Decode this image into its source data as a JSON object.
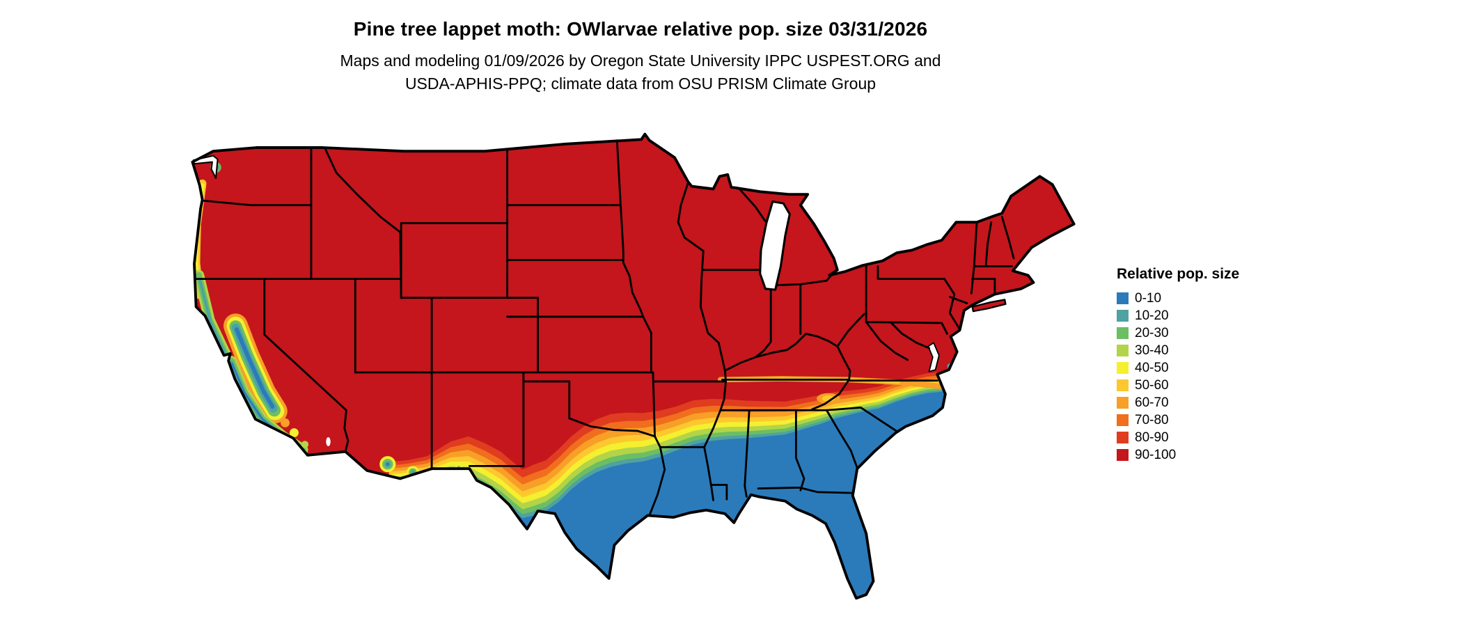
{
  "header": {
    "title": "Pine tree lappet moth: OWlarvae relative pop. size 03/31/2026",
    "subtitle_line1": "Maps and modeling 01/09/2026 by Oregon State University IPPC USPEST.ORG and",
    "subtitle_line2": "USDA-APHIS-PPQ; climate data from OSU PRISM Climate Group"
  },
  "legend": {
    "title": "Relative pop. size",
    "items": [
      {
        "label": "0-10",
        "color": "#2B7BBA"
      },
      {
        "label": "10-20",
        "color": "#4FA2A0"
      },
      {
        "label": "20-30",
        "color": "#6CBE63"
      },
      {
        "label": "30-40",
        "color": "#B3D448"
      },
      {
        "label": "40-50",
        "color": "#F4F02F"
      },
      {
        "label": "50-60",
        "color": "#FDC82F"
      },
      {
        "label": "60-70",
        "color": "#F89F27"
      },
      {
        "label": "70-80",
        "color": "#F06E1D"
      },
      {
        "label": "80-90",
        "color": "#E03C20"
      },
      {
        "label": "90-100",
        "color": "#C4161C"
      }
    ]
  }
}
